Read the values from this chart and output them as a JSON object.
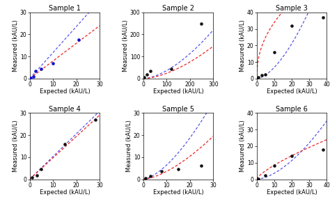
{
  "samples": [
    {
      "title": "Sample 1",
      "points_x": [
        0.5,
        1.5,
        2.5,
        5,
        10,
        21
      ],
      "points_y": [
        0.2,
        0.8,
        3.5,
        4.5,
        7.0,
        17.5
      ],
      "xlim": [
        0,
        30
      ],
      "ylim": [
        0,
        30
      ],
      "xticks": [
        0,
        10,
        20,
        30
      ],
      "yticks": [
        0,
        10,
        20,
        30
      ],
      "dot_color": "#1010cc"
    },
    {
      "title": "Sample 2",
      "points_x": [
        5,
        15,
        30,
        120,
        250
      ],
      "points_y": [
        5,
        20,
        35,
        45,
        250
      ],
      "xlim": [
        0,
        300
      ],
      "ylim": [
        0,
        300
      ],
      "xticks": [
        0,
        100,
        200,
        300
      ],
      "yticks": [
        0,
        100,
        200,
        300
      ],
      "dot_color": "#111111"
    },
    {
      "title": "Sample 3",
      "points_x": [
        1,
        3,
        5,
        10,
        20,
        38
      ],
      "points_y": [
        1.0,
        2.0,
        2.5,
        16,
        32,
        37
      ],
      "xlim": [
        0,
        40
      ],
      "ylim": [
        0,
        40
      ],
      "xticks": [
        0,
        10,
        20,
        30,
        40
      ],
      "yticks": [
        0,
        10,
        20,
        30,
        40
      ],
      "dot_color": "#111111"
    },
    {
      "title": "Sample 4",
      "points_x": [
        1,
        3,
        5,
        15,
        28
      ],
      "points_y": [
        0.8,
        1.8,
        4.5,
        16,
        27
      ],
      "xlim": [
        0,
        30
      ],
      "ylim": [
        0,
        30
      ],
      "xticks": [
        0,
        10,
        20,
        30
      ],
      "yticks": [
        0,
        10,
        20,
        30
      ],
      "dot_color": "#111111"
    },
    {
      "title": "Sample 5",
      "points_x": [
        1,
        3,
        8,
        15,
        25
      ],
      "points_y": [
        0.5,
        1.5,
        3.5,
        4.5,
        6.0
      ],
      "xlim": [
        0,
        30
      ],
      "ylim": [
        0,
        30
      ],
      "xticks": [
        0,
        10,
        20,
        30
      ],
      "yticks": [
        0,
        10,
        20,
        30
      ],
      "dot_color": "#111111"
    },
    {
      "title": "Sample 6",
      "points_x": [
        1,
        5,
        10,
        20,
        38
      ],
      "points_y": [
        0.3,
        2.5,
        8.0,
        14,
        18
      ],
      "xlim": [
        0,
        40
      ],
      "ylim": [
        0,
        40
      ],
      "xticks": [
        0,
        10,
        20,
        30,
        40
      ],
      "yticks": [
        0,
        10,
        20,
        30,
        40
      ],
      "dot_color": "#111111"
    }
  ],
  "xlabel": "Expected (kAU/L)",
  "ylabel": "Measured (kAU/L)",
  "blue_color": "#5555ee",
  "red_color": "#ee2222",
  "title_fontsize": 7,
  "label_fontsize": 6,
  "tick_fontsize": 5.5,
  "bg_color": "#ffffff"
}
